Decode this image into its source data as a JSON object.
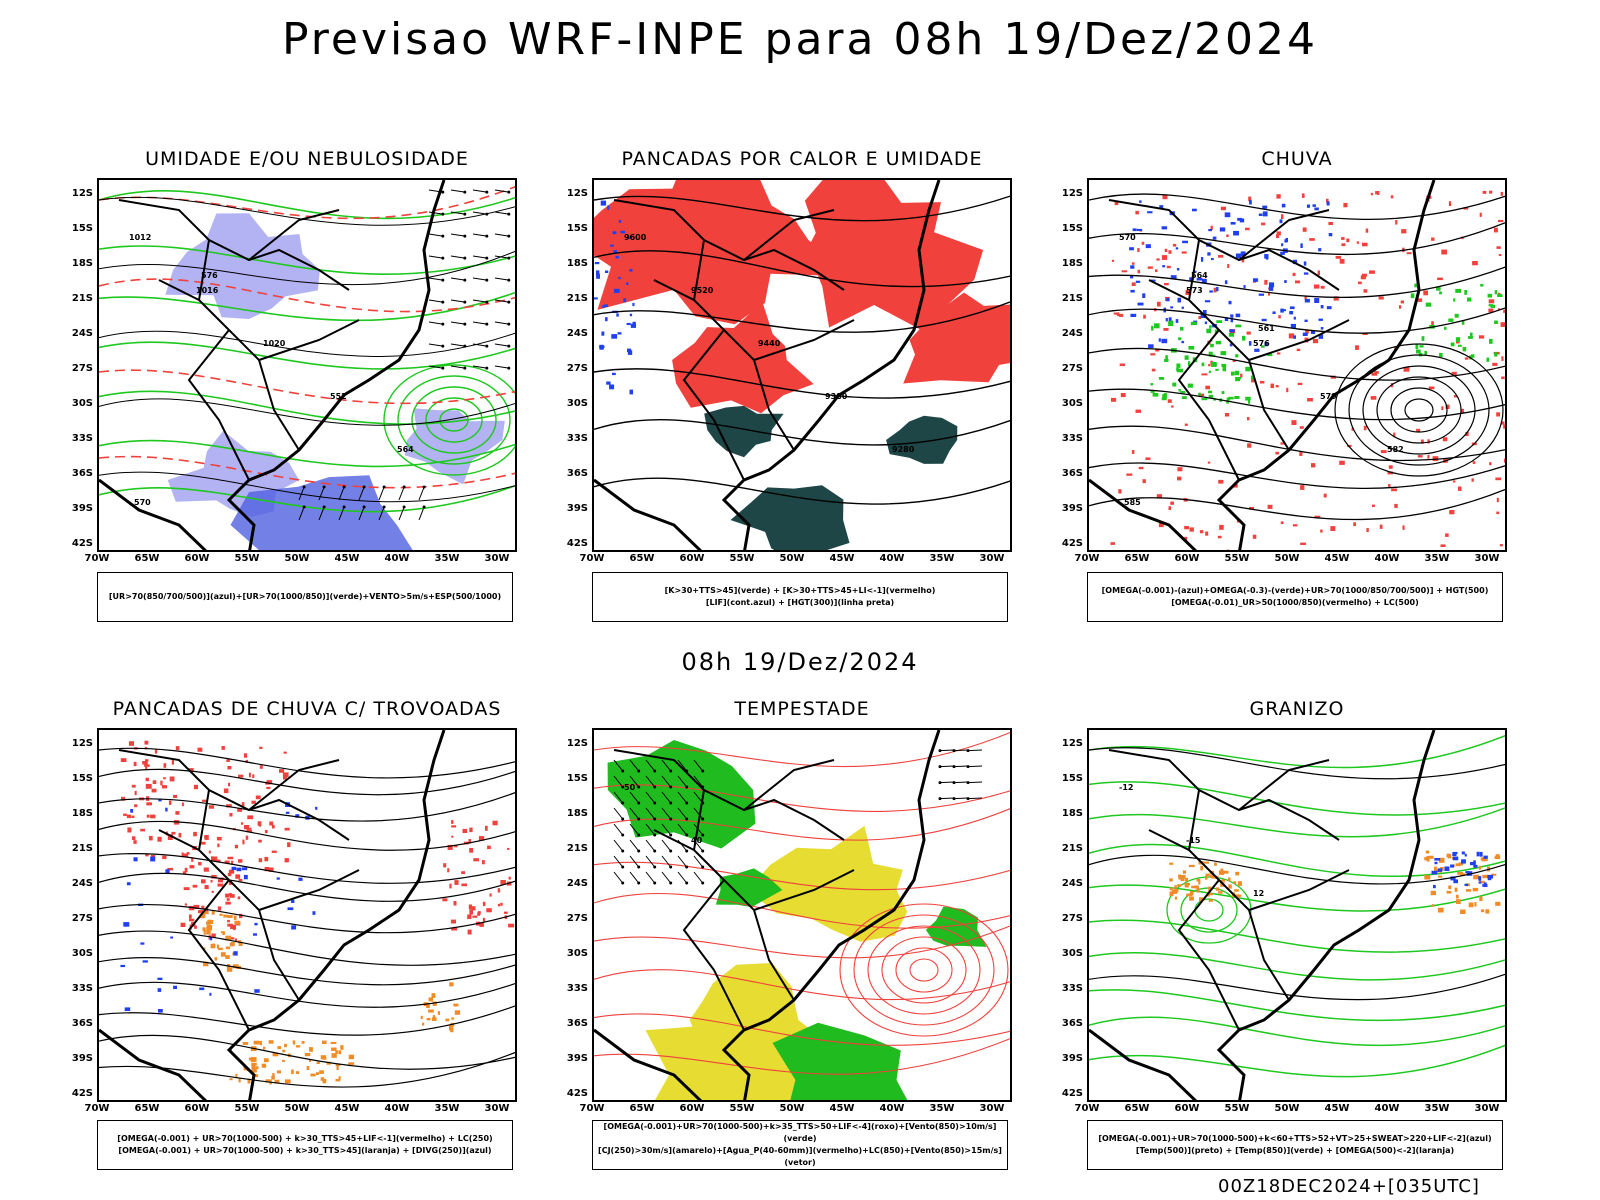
{
  "title": "Previsao WRF-INPE  para 08h 19/Dez/2024",
  "subtitle": "08h 19/Dez/2024",
  "footer": "00Z18DEC2024+[035UTC]",
  "axes": {
    "lat_labels": [
      "12S",
      "15S",
      "18S",
      "21S",
      "24S",
      "27S",
      "30S",
      "33S",
      "36S",
      "39S",
      "42S"
    ],
    "lon_labels": [
      "70W",
      "65W",
      "60W",
      "55W",
      "50W",
      "45W",
      "40W",
      "35W",
      "30W"
    ]
  },
  "colors": {
    "red": "#f0413c",
    "green": "#1ec81e",
    "blue": "#2040f0",
    "lavender": "#a0a0f0",
    "darkteal": "#1e4646",
    "orange": "#f08c28",
    "yellow": "#e6dc32",
    "black": "#000000"
  },
  "panels": [
    {
      "id": "umidade",
      "title": "UMIDADE E/OU NEBULOSIDADE",
      "legend": [
        "[UR>70(850/700/500)](azul)+[UR>70(1000/850)](verde)+VENTO>5m/s+ESP(500/1000)"
      ],
      "contour_labels": [
        "1012",
        "1016",
        "1020",
        "552",
        "564",
        "570",
        "576"
      ]
    },
    {
      "id": "pancadas-calor",
      "title": "PANCADAS POR CALOR E UMIDADE",
      "legend": [
        "[K>30+TTS>45](verde)  +  [K>30+TTS>45+LI<-1](vermelho)",
        "[LIF](cont.azul)  +  [HGT(300)](linha preta)"
      ],
      "contour_labels": [
        "9600",
        "9520",
        "9440",
        "9380",
        "9280"
      ]
    },
    {
      "id": "chuva",
      "title": "CHUVA",
      "legend": [
        "[OMEGA(-0.001)-(azul)+OMEGA(-0.3)-(verde)+UR>70(1000/850/700/500)]  +  HGT(500)",
        "[OMEGA(-0.01)_UR>50(1000/850)(vermelho)  +  LC(500)"
      ],
      "contour_labels": [
        "570",
        "573",
        "576",
        "579",
        "582",
        "585",
        "564",
        "561"
      ]
    },
    {
      "id": "trovoadas",
      "title": "PANCADAS DE CHUVA C/ TROVOADAS",
      "legend": [
        "[OMEGA(-0.001)  +  UR>70(1000-500)  +  k>30_TTS>45+LIF<-1](vermelho)  +  LC(250)",
        "[OMEGA(-0.001)  +  UR>70(1000-500)  +  k>30_TTS>45](laranja)  +  [DIVG(250)](azul)"
      ],
      "contour_labels": []
    },
    {
      "id": "tempestade",
      "title": "TEMPESTADE",
      "legend": [
        "[OMEGA(-0.001)+UR>70(1000-500)+k>35_TTS>50+LIF<-4](roxo)+[Vento(850)>10m/s](verde)",
        "[CJ(250)>30m/s](amarelo)+[Agua_P(40-60mm)](vermelho)+LC(850)+[Vento(850)>15m/s](vetor)"
      ],
      "contour_labels": [
        "50",
        "40"
      ]
    },
    {
      "id": "granizo",
      "title": "GRANIZO",
      "legend": [
        "[OMEGA(-0.001)+UR>70(1000-500)+k<60+TTS>52+VT>25+SWEAT>220+LIF<-2](azul)",
        "[Temp(500)](preto)  +  [Temp(850)](verde)  +  [OMEGA(500)<-2](laranja)"
      ],
      "contour_labels": [
        "-12",
        "-15",
        "12"
      ]
    }
  ]
}
